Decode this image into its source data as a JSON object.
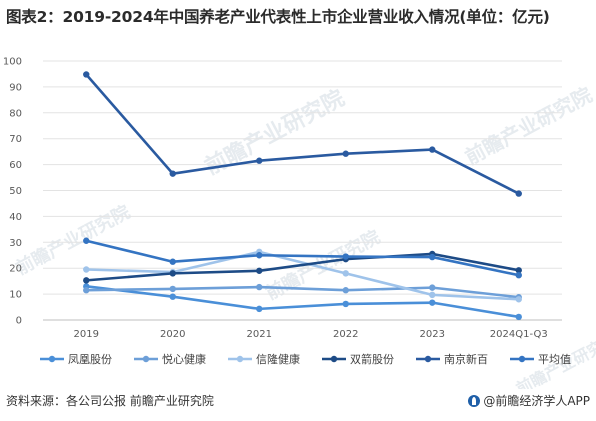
{
  "title": "图表2：2019-2024年中国养老产业代表性上市企业营业收入情况(单位：亿元)",
  "source": "资料来源：各公司公报 前瞻产业研究院",
  "brand": "@前瞻经济学人APP",
  "watermark_text": "前瞻产业研究院",
  "chart_data": {
    "type": "line",
    "title": "",
    "xlabel": "",
    "ylabel": "",
    "categories": [
      "2019",
      "2020",
      "2021",
      "2022",
      "2023",
      "2024Q1-Q3"
    ],
    "ylim": [
      0,
      100
    ],
    "yticks": [
      0,
      10,
      20,
      30,
      40,
      50,
      60,
      70,
      80,
      90,
      100
    ],
    "grid": "horizontal",
    "legend_position": "bottom",
    "series": [
      {
        "name": "凤凰股份",
        "color": "#4a8fd8",
        "values": [
          13.0,
          9.0,
          4.3,
          6.2,
          6.7,
          1.2
        ]
      },
      {
        "name": "悦心健康",
        "color": "#6d9fd8",
        "values": [
          11.5,
          12.0,
          12.7,
          11.5,
          12.5,
          8.8
        ]
      },
      {
        "name": "信隆健康",
        "color": "#9fc3ea",
        "values": [
          19.5,
          18.5,
          26.3,
          18.0,
          9.7,
          8.0
        ]
      },
      {
        "name": "双箭股份",
        "color": "#1d4b86",
        "values": [
          15.3,
          18.0,
          19.0,
          23.5,
          25.5,
          19.2
        ]
      },
      {
        "name": "南京新百",
        "color": "#2a5aa0",
        "values": [
          94.8,
          56.5,
          61.5,
          64.2,
          65.8,
          48.8
        ]
      },
      {
        "name": "平均值",
        "color": "#3474c2",
        "values": [
          30.6,
          22.5,
          25.0,
          24.5,
          24.3,
          17.3
        ]
      }
    ]
  }
}
